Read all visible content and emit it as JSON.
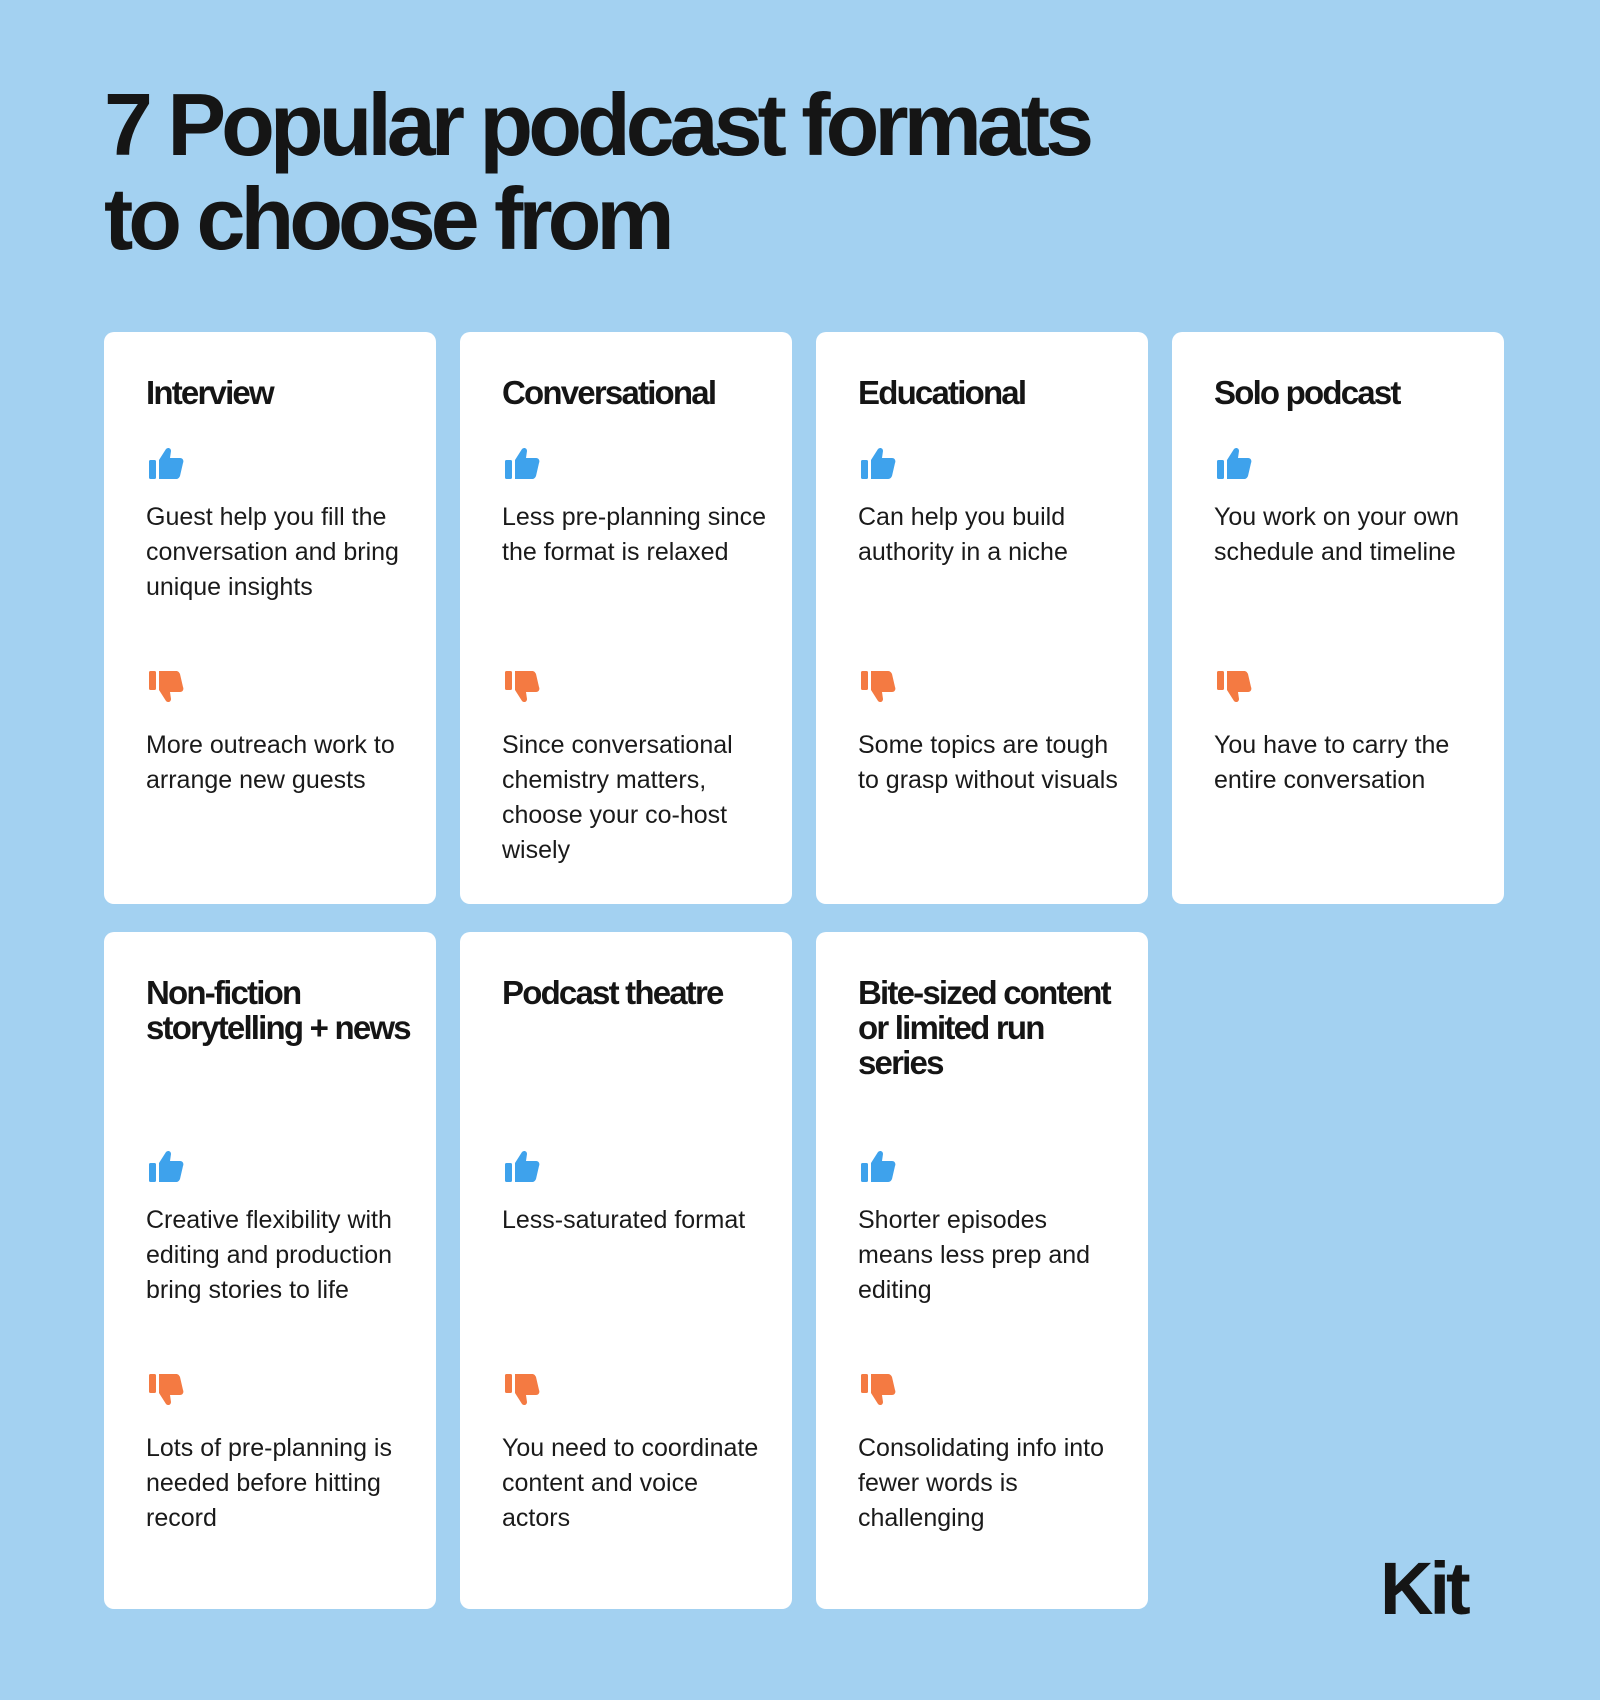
{
  "title": [
    "7 Popular podcast formats",
    "to choose from"
  ],
  "cards": [
    {
      "title": "Interview",
      "pro": "Guest help you fill the conversation and bring unique insights",
      "con": "More outreach work to arrange new guests"
    },
    {
      "title": "Conversational",
      "pro": "Less pre-planning since the format is relaxed",
      "con": "Since conversational chemistry matters, choose your co-host wisely"
    },
    {
      "title": "Educational",
      "pro": "Can help you build authority in a niche",
      "con": "Some topics are tough to grasp without visuals"
    },
    {
      "title": "Solo podcast",
      "pro": "You work on your own schedule and timeline",
      "con": "You have to carry the entire conversation"
    },
    {
      "title": "Non-fiction storytelling + news",
      "pro": "Creative flexibility with editing and production bring stories to life",
      "con": "Lots of pre-planning is needed before hitting record"
    },
    {
      "title": "Podcast theatre",
      "pro": "Less-saturated format",
      "con": "You need to coordinate content and voice actors"
    },
    {
      "title": "Bite-sized content or limited run series",
      "pro": "Shorter episodes means less prep and editing",
      "con": "Consolidating info into fewer words is challenging"
    }
  ],
  "logo": "Kit"
}
